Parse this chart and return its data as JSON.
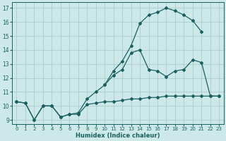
{
  "xlabel": "Humidex (Indice chaleur)",
  "xlim": [
    -0.5,
    23.5
  ],
  "ylim": [
    8.7,
    17.4
  ],
  "xticks": [
    0,
    1,
    2,
    3,
    4,
    5,
    6,
    7,
    8,
    9,
    10,
    11,
    12,
    13,
    14,
    15,
    16,
    17,
    18,
    19,
    20,
    21,
    22,
    23
  ],
  "yticks": [
    9,
    10,
    11,
    12,
    13,
    14,
    15,
    16,
    17
  ],
  "background_color": "#cce8e8",
  "grid_color": "#aacccc",
  "line_color": "#1a6060",
  "line1_x": [
    0,
    1,
    2,
    3,
    4,
    5,
    6,
    7,
    8,
    9,
    10,
    11,
    12,
    13,
    14,
    15,
    16,
    17,
    18,
    19,
    20,
    21,
    22,
    23
  ],
  "line1_y": [
    10.3,
    10.2,
    9.0,
    10.0,
    10.0,
    9.2,
    9.4,
    9.4,
    10.1,
    10.2,
    10.3,
    10.3,
    10.4,
    10.5,
    10.5,
    10.6,
    10.6,
    10.7,
    10.7,
    10.7,
    10.7,
    10.7,
    10.7,
    10.7
  ],
  "line2_x": [
    0,
    1,
    2,
    3,
    4,
    5,
    6,
    7,
    8,
    9,
    10,
    11,
    12,
    13,
    14,
    15,
    16,
    17,
    18,
    19,
    20,
    21,
    22,
    23
  ],
  "line2_y": [
    10.3,
    10.2,
    9.0,
    10.0,
    10.0,
    9.2,
    9.4,
    9.5,
    10.5,
    11.0,
    11.5,
    12.2,
    12.6,
    13.8,
    14.0,
    12.6,
    12.5,
    12.1,
    12.5,
    12.6,
    13.3,
    13.1,
    10.7,
    10.7
  ],
  "line3_x": [
    10,
    11,
    12,
    13,
    14,
    15,
    16,
    17,
    18,
    19,
    20,
    21
  ],
  "line3_y": [
    11.5,
    12.5,
    13.2,
    14.3,
    15.9,
    16.5,
    16.7,
    17.0,
    16.8,
    16.5,
    16.1,
    15.3
  ]
}
